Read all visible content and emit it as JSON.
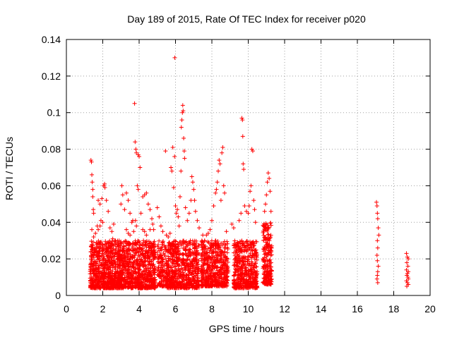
{
  "chart_data": {
    "type": "scatter",
    "title": "Day 189 of 2015, Rate Of TEC Index for receiver p020",
    "xlabel": "GPS time / hours",
    "ylabel": "ROTI / TECUs",
    "xlim": [
      0,
      20
    ],
    "ylim": [
      0,
      0.14
    ],
    "x_ticks": [
      0,
      2,
      4,
      6,
      8,
      10,
      12,
      14,
      16,
      18,
      20
    ],
    "x_tick_labels": [
      "0",
      "2",
      "4",
      "6",
      "8",
      "10",
      "12",
      "14",
      "16",
      "18",
      "20"
    ],
    "y_ticks": [
      0,
      0.02,
      0.04,
      0.06,
      0.08,
      0.1,
      0.12,
      0.14
    ],
    "y_tick_labels": [
      "0",
      "0.02",
      "0.04",
      "0.06",
      "0.08",
      "0.1",
      "0.12",
      "0.14"
    ],
    "grid": true,
    "marker": "+",
    "marker_color": "#ff0000",
    "series": [
      {
        "name": "ROTI",
        "points": [
          [
            1.35,
            0.074
          ],
          [
            1.38,
            0.073
          ],
          [
            1.4,
            0.066
          ],
          [
            1.42,
            0.062
          ],
          [
            1.45,
            0.058
          ],
          [
            1.45,
            0.054
          ],
          [
            1.48,
            0.047
          ],
          [
            1.5,
            0.045
          ],
          [
            1.4,
            0.036
          ],
          [
            1.5,
            0.032
          ],
          [
            1.6,
            0.034
          ],
          [
            1.7,
            0.038
          ],
          [
            1.75,
            0.036
          ],
          [
            1.85,
            0.038
          ],
          [
            1.9,
            0.041
          ],
          [
            2.0,
            0.04
          ],
          [
            1.75,
            0.052
          ],
          [
            1.85,
            0.05
          ],
          [
            1.95,
            0.053
          ],
          [
            2.05,
            0.06
          ],
          [
            2.1,
            0.061
          ],
          [
            2.12,
            0.059
          ],
          [
            2.2,
            0.052
          ],
          [
            2.3,
            0.046
          ],
          [
            2.4,
            0.037
          ],
          [
            2.5,
            0.035
          ],
          [
            2.55,
            0.031
          ],
          [
            2.6,
            0.039
          ],
          [
            2.7,
            0.03
          ],
          [
            2.8,
            0.028
          ],
          [
            2.9,
            0.03
          ],
          [
            3.0,
            0.05
          ],
          [
            3.05,
            0.06
          ],
          [
            3.1,
            0.055
          ],
          [
            3.2,
            0.047
          ],
          [
            3.3,
            0.056
          ],
          [
            3.4,
            0.052
          ],
          [
            3.5,
            0.045
          ],
          [
            3.6,
            0.04
          ],
          [
            3.65,
            0.041
          ],
          [
            3.3,
            0.036
          ],
          [
            3.4,
            0.034
          ],
          [
            3.5,
            0.033
          ],
          [
            3.7,
            0.035
          ],
          [
            3.75,
            0.105
          ],
          [
            3.78,
            0.084
          ],
          [
            3.82,
            0.08
          ],
          [
            3.85,
            0.078
          ],
          [
            3.95,
            0.077
          ],
          [
            4.0,
            0.076
          ],
          [
            4.05,
            0.07
          ],
          [
            3.9,
            0.06
          ],
          [
            3.95,
            0.058
          ],
          [
            3.8,
            0.041
          ],
          [
            3.85,
            0.038
          ],
          [
            4.1,
            0.045
          ],
          [
            4.2,
            0.054
          ],
          [
            4.3,
            0.055
          ],
          [
            4.4,
            0.056
          ],
          [
            4.5,
            0.05
          ],
          [
            4.6,
            0.047
          ],
          [
            4.7,
            0.042
          ],
          [
            4.75,
            0.039
          ],
          [
            4.2,
            0.036
          ],
          [
            4.3,
            0.035
          ],
          [
            4.4,
            0.033
          ],
          [
            4.6,
            0.036
          ],
          [
            4.8,
            0.036
          ],
          [
            5.0,
            0.048
          ],
          [
            5.1,
            0.043
          ],
          [
            5.2,
            0.038
          ],
          [
            5.3,
            0.035
          ],
          [
            5.45,
            0.079
          ],
          [
            5.5,
            0.033
          ],
          [
            5.6,
            0.032
          ],
          [
            5.7,
            0.034
          ],
          [
            5.75,
            0.07
          ],
          [
            5.8,
            0.068
          ],
          [
            5.85,
            0.081
          ],
          [
            5.9,
            0.059
          ],
          [
            5.95,
            0.076
          ],
          [
            5.96,
            0.13
          ],
          [
            6.0,
            0.049
          ],
          [
            6.05,
            0.045
          ],
          [
            6.1,
            0.047
          ],
          [
            6.15,
            0.043
          ],
          [
            6.2,
            0.038
          ],
          [
            6.25,
            0.054
          ],
          [
            6.3,
            0.068
          ],
          [
            6.32,
            0.092
          ],
          [
            6.35,
            0.096
          ],
          [
            6.38,
            0.1
          ],
          [
            6.4,
            0.104
          ],
          [
            6.42,
            0.101
          ],
          [
            6.45,
            0.086
          ],
          [
            6.48,
            0.079
          ],
          [
            6.5,
            0.075
          ],
          [
            6.55,
            0.048
          ],
          [
            6.65,
            0.041
          ],
          [
            6.75,
            0.045
          ],
          [
            6.85,
            0.052
          ],
          [
            6.9,
            0.065
          ],
          [
            6.95,
            0.062
          ],
          [
            7.0,
            0.058
          ],
          [
            7.05,
            0.052
          ],
          [
            7.1,
            0.046
          ],
          [
            7.2,
            0.041
          ],
          [
            7.3,
            0.037
          ],
          [
            7.5,
            0.033
          ],
          [
            7.6,
            0.03
          ],
          [
            7.7,
            0.033
          ],
          [
            7.8,
            0.034
          ],
          [
            7.9,
            0.036
          ],
          [
            8.0,
            0.041
          ],
          [
            8.1,
            0.049
          ],
          [
            8.2,
            0.056
          ],
          [
            8.25,
            0.058
          ],
          [
            8.3,
            0.062
          ],
          [
            8.35,
            0.068
          ],
          [
            8.4,
            0.074
          ],
          [
            8.45,
            0.072
          ],
          [
            8.5,
            0.052
          ],
          [
            8.55,
            0.078
          ],
          [
            8.6,
            0.081
          ],
          [
            8.65,
            0.06
          ],
          [
            8.7,
            0.056
          ],
          [
            8.8,
            0.035
          ],
          [
            9.1,
            0.039
          ],
          [
            9.2,
            0.037
          ],
          [
            9.5,
            0.041
          ],
          [
            9.6,
            0.045
          ],
          [
            9.65,
            0.097
          ],
          [
            9.68,
            0.096
          ],
          [
            9.7,
            0.087
          ],
          [
            9.72,
            0.072
          ],
          [
            9.75,
            0.069
          ],
          [
            9.8,
            0.049
          ],
          [
            9.9,
            0.046
          ],
          [
            10.0,
            0.045
          ],
          [
            10.05,
            0.049
          ],
          [
            10.1,
            0.057
          ],
          [
            10.15,
            0.06
          ],
          [
            10.2,
            0.08
          ],
          [
            10.25,
            0.079
          ],
          [
            10.3,
            0.052
          ],
          [
            10.35,
            0.047
          ],
          [
            10.4,
            0.04
          ],
          [
            10.9,
            0.046
          ],
          [
            10.95,
            0.05
          ],
          [
            11.0,
            0.055
          ],
          [
            11.05,
            0.062
          ],
          [
            11.1,
            0.067
          ],
          [
            11.15,
            0.064
          ],
          [
            11.2,
            0.057
          ],
          [
            11.25,
            0.046
          ],
          [
            17.05,
            0.051
          ],
          [
            17.08,
            0.049
          ],
          [
            17.1,
            0.045
          ],
          [
            17.12,
            0.042
          ],
          [
            17.15,
            0.037
          ],
          [
            17.18,
            0.033
          ],
          [
            17.1,
            0.03
          ],
          [
            17.12,
            0.026
          ],
          [
            17.08,
            0.022
          ],
          [
            17.1,
            0.019
          ],
          [
            17.15,
            0.016
          ],
          [
            17.12,
            0.013
          ],
          [
            17.1,
            0.011
          ],
          [
            17.08,
            0.009
          ],
          [
            17.12,
            0.007
          ],
          [
            18.7,
            0.023
          ],
          [
            18.75,
            0.021
          ],
          [
            18.8,
            0.02
          ],
          [
            18.72,
            0.018
          ],
          [
            18.78,
            0.016
          ],
          [
            18.7,
            0.014
          ],
          [
            18.8,
            0.013
          ],
          [
            18.75,
            0.012
          ],
          [
            18.72,
            0.011
          ],
          [
            18.78,
            0.01
          ],
          [
            18.8,
            0.009
          ],
          [
            18.7,
            0.008
          ],
          [
            18.75,
            0.007
          ],
          [
            18.8,
            0.006
          ],
          [
            18.72,
            0.005
          ]
        ],
        "bands": [
          {
            "x_range": [
              1.3,
              3.0
            ],
            "y_range": [
              0.004,
              0.03
            ],
            "count": 700
          },
          {
            "x_range": [
              2.9,
              4.9
            ],
            "y_range": [
              0.004,
              0.03
            ],
            "count": 700
          },
          {
            "x_range": [
              5.0,
              5.5
            ],
            "y_range": [
              0.005,
              0.03
            ],
            "count": 120
          },
          {
            "x_range": [
              5.5,
              7.3
            ],
            "y_range": [
              0.004,
              0.03
            ],
            "count": 600
          },
          {
            "x_range": [
              7.4,
              8.9
            ],
            "y_range": [
              0.005,
              0.03
            ],
            "count": 500
          },
          {
            "x_range": [
              9.2,
              10.5
            ],
            "y_range": [
              0.004,
              0.03
            ],
            "count": 450
          },
          {
            "x_range": [
              10.8,
              11.3
            ],
            "y_range": [
              0.006,
              0.04
            ],
            "count": 200
          }
        ]
      }
    ]
  }
}
